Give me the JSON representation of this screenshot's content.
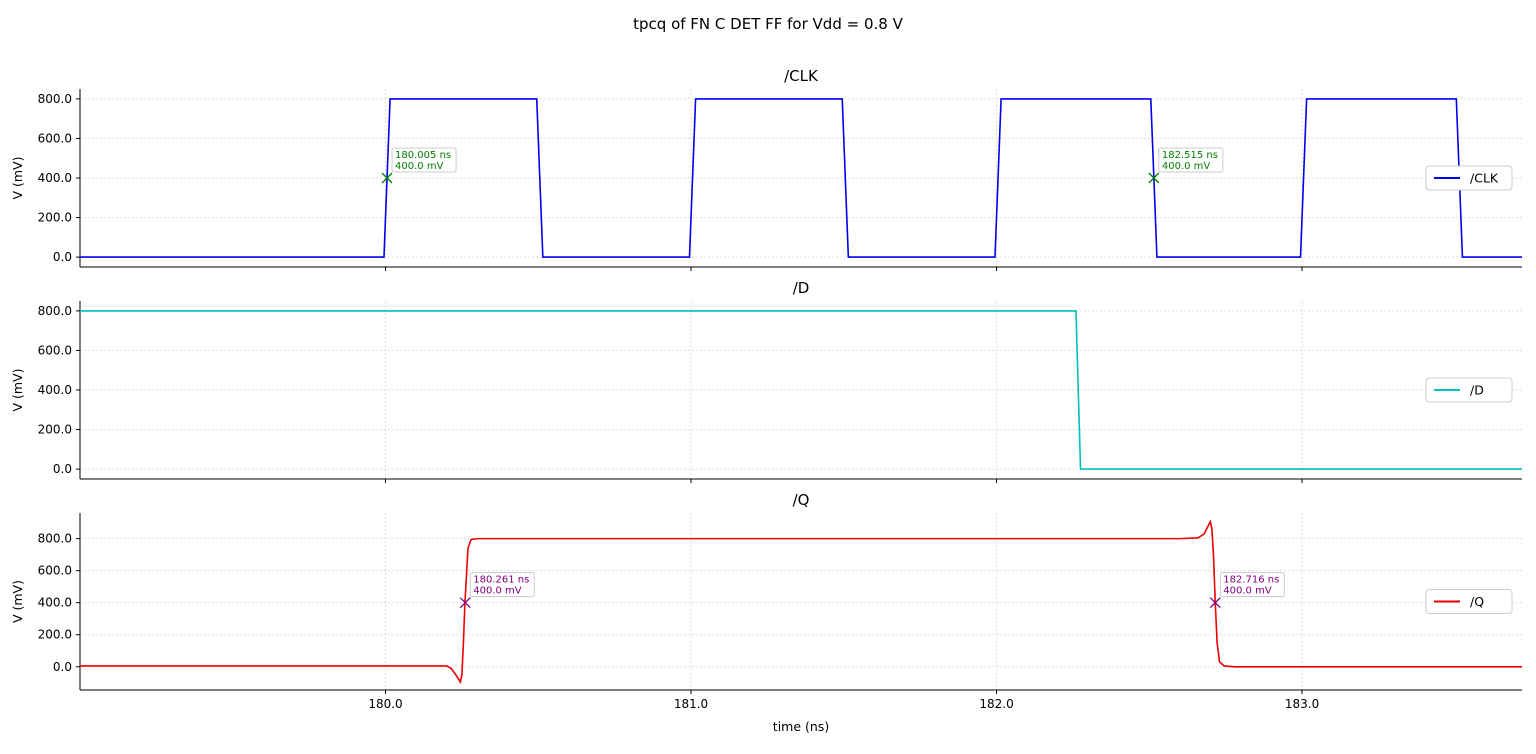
{
  "chart_data": {
    "type": "line",
    "title": "tpcq of FN C DET FF for Vdd = 0.8 V",
    "xlabel": "time (ns)",
    "xlim": [
      179.0,
      183.72
    ],
    "x_ticks": [
      "180.0",
      "181.0",
      "182.0",
      "183.0"
    ],
    "x_tick_values": [
      180.0,
      181.0,
      182.0,
      183.0
    ],
    "grid": true,
    "panels": [
      {
        "title": "/CLK",
        "ylabel": "V (mV)",
        "ylim": [
          -50,
          850
        ],
        "y_ticks": [
          "0.0",
          "200.0",
          "400.0",
          "600.0",
          "800.0"
        ],
        "y_tick_values": [
          0,
          200,
          400,
          600,
          800
        ],
        "legend": "center-right",
        "series": [
          {
            "name": "/CLK",
            "color": "#0000ee",
            "x": [
              179.0,
              179.995,
              180.015,
              180.495,
              180.515,
              180.995,
              181.015,
              181.495,
              181.515,
              181.995,
              182.015,
              182.505,
              182.525,
              182.995,
              183.015,
              183.505,
              183.525,
              183.72
            ],
            "y": [
              0,
              0,
              800,
              800,
              0,
              0,
              800,
              800,
              0,
              0,
              800,
              800,
              0,
              0,
              800,
              800,
              0,
              0
            ]
          }
        ],
        "annotations": [
          {
            "x": 180.005,
            "y": 400,
            "label": [
              "180.005 ns",
              "400.0 mV"
            ],
            "color": "#008000"
          },
          {
            "x": 182.515,
            "y": 400,
            "label": [
              "182.515 ns",
              "400.0 mV"
            ],
            "color": "#008000"
          }
        ]
      },
      {
        "title": "/D",
        "ylabel": "V (mV)",
        "ylim": [
          -50,
          850
        ],
        "y_ticks": [
          "0.0",
          "200.0",
          "400.0",
          "600.0",
          "800.0"
        ],
        "y_tick_values": [
          0,
          200,
          400,
          600,
          800
        ],
        "legend": "center-right",
        "series": [
          {
            "name": "/D",
            "color": "#00bfbf",
            "x": [
              179.0,
              182.26,
              182.275,
              183.72
            ],
            "y": [
              800,
              800,
              0,
              0
            ]
          }
        ],
        "annotations": []
      },
      {
        "title": "/Q",
        "ylabel": "V (mV)",
        "ylim": [
          -145,
          960
        ],
        "y_ticks": [
          "0.0",
          "200.0",
          "400.0",
          "600.0",
          "800.0"
        ],
        "y_tick_values": [
          0,
          200,
          400,
          600,
          800
        ],
        "legend": "center-right",
        "series": [
          {
            "name": "/Q",
            "color": "#ee0000",
            "x": [
              179.0,
              180.2,
              180.215,
              180.23,
              180.245,
              180.25,
              180.255,
              180.26,
              180.27,
              180.28,
              180.3,
              180.35,
              182.6,
              182.66,
              182.68,
              182.69,
              182.7,
              182.705,
              182.71,
              182.716,
              182.722,
              182.73,
              182.745,
              182.78,
              183.72
            ],
            "y": [
              5,
              5,
              -10,
              -50,
              -95,
              -50,
              150,
              400,
              740,
              795,
              800,
              800,
              800,
              805,
              830,
              870,
              905,
              860,
              700,
              400,
              150,
              30,
              5,
              0,
              0
            ]
          }
        ],
        "annotations": [
          {
            "x": 180.261,
            "y": 400,
            "label": [
              "180.261 ns",
              "400.0 mV"
            ],
            "color": "#800080"
          },
          {
            "x": 182.716,
            "y": 400,
            "label": [
              "182.716 ns",
              "400.0 mV"
            ],
            "color": "#800080"
          }
        ]
      }
    ]
  }
}
